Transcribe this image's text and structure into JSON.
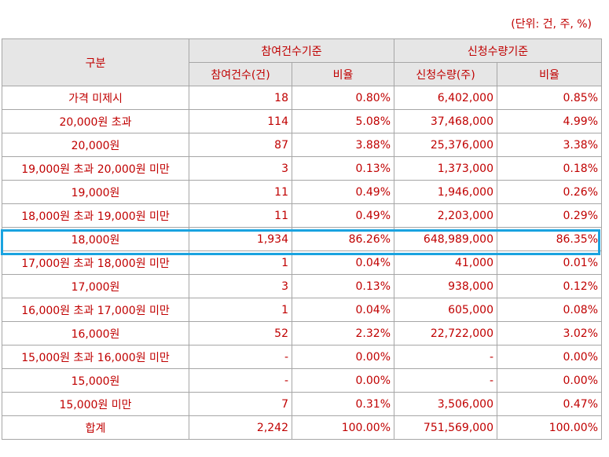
{
  "unit_note": "(단위: 건, 주, %)",
  "header": {
    "category": "구분",
    "group_participation": "참여건수기준",
    "group_quantity": "신청수량기준",
    "col_count": "참여건수(건)",
    "col_count_ratio": "비율",
    "col_qty": "신청수량(주)",
    "col_qty_ratio": "비율"
  },
  "rows": [
    {
      "label": "가격 미제시",
      "count": "18",
      "count_ratio": "0.80%",
      "qty": "6,402,000",
      "qty_ratio": "0.85%"
    },
    {
      "label": "20,000원 초과",
      "count": "114",
      "count_ratio": "5.08%",
      "qty": "37,468,000",
      "qty_ratio": "4.99%"
    },
    {
      "label": "20,000원",
      "count": "87",
      "count_ratio": "3.88%",
      "qty": "25,376,000",
      "qty_ratio": "3.38%"
    },
    {
      "label": "19,000원 초과 20,000원 미만",
      "count": "3",
      "count_ratio": "0.13%",
      "qty": "1,373,000",
      "qty_ratio": "0.18%"
    },
    {
      "label": "19,000원",
      "count": "11",
      "count_ratio": "0.49%",
      "qty": "1,946,000",
      "qty_ratio": "0.26%"
    },
    {
      "label": "18,000원 초과 19,000원 미만",
      "count": "11",
      "count_ratio": "0.49%",
      "qty": "2,203,000",
      "qty_ratio": "0.29%"
    },
    {
      "label": "18,000원",
      "count": "1,934",
      "count_ratio": "86.26%",
      "qty": "648,989,000",
      "qty_ratio": "86.35%"
    },
    {
      "label": "17,000원 초과 18,000원 미만",
      "count": "1",
      "count_ratio": "0.04%",
      "qty": "41,000",
      "qty_ratio": "0.01%"
    },
    {
      "label": "17,000원",
      "count": "3",
      "count_ratio": "0.13%",
      "qty": "938,000",
      "qty_ratio": "0.12%"
    },
    {
      "label": "16,000원 초과 17,000원 미만",
      "count": "1",
      "count_ratio": "0.04%",
      "qty": "605,000",
      "qty_ratio": "0.08%"
    },
    {
      "label": "16,000원",
      "count": "52",
      "count_ratio": "2.32%",
      "qty": "22,722,000",
      "qty_ratio": "3.02%"
    },
    {
      "label": "15,000원 초과 16,000원 미만",
      "count": "-",
      "count_ratio": "0.00%",
      "qty": "-",
      "qty_ratio": "0.00%"
    },
    {
      "label": "15,000원",
      "count": "-",
      "count_ratio": "0.00%",
      "qty": "-",
      "qty_ratio": "0.00%"
    },
    {
      "label": "15,000원 미만",
      "count": "7",
      "count_ratio": "0.31%",
      "qty": "3,506,000",
      "qty_ratio": "0.47%"
    },
    {
      "label": "합계",
      "count": "2,242",
      "count_ratio": "100.00%",
      "qty": "751,569,000",
      "qty_ratio": "100.00%"
    }
  ],
  "colors": {
    "text": "#c00000",
    "header_bg": "#e6e6e6",
    "border": "#a6a6a6",
    "highlight": "#1aa3e0"
  }
}
